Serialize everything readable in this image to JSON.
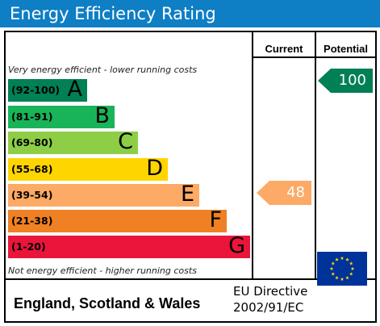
{
  "title": "Energy Efficiency Rating",
  "columns": {
    "current": "Current",
    "potential": "Potential"
  },
  "top_note": "Very energy efficient - lower running costs",
  "bottom_note": "Not energy efficient - higher running costs",
  "bands": [
    {
      "range": "(92-100)",
      "letter": "A",
      "color": "#008054"
    },
    {
      "range": "(81-91)",
      "letter": "B",
      "color": "#19b459"
    },
    {
      "range": "(69-80)",
      "letter": "C",
      "color": "#8dce46"
    },
    {
      "range": "(55-68)",
      "letter": "D",
      "color": "#ffd500"
    },
    {
      "range": "(39-54)",
      "letter": "E",
      "color": "#fcaa65"
    },
    {
      "range": "(21-38)",
      "letter": "F",
      "color": "#ef8023"
    },
    {
      "range": "(1-20)",
      "letter": "G",
      "color": "#e9153b"
    }
  ],
  "current_rating": {
    "value": "48",
    "band": "E",
    "color": "#fcaa65"
  },
  "potential_rating": {
    "value": "100",
    "band": "A",
    "color": "#008054"
  },
  "footer": {
    "region": "England, Scotland & Wales",
    "directive_line1": "EU Directive",
    "directive_line2": "2002/91/EC"
  },
  "colors": {
    "title_bar": "#0e7ec5",
    "eu_flag": "#003399",
    "eu_stars": "#ffdd00"
  },
  "icons": {
    "flag": "eu-flag-icon"
  }
}
